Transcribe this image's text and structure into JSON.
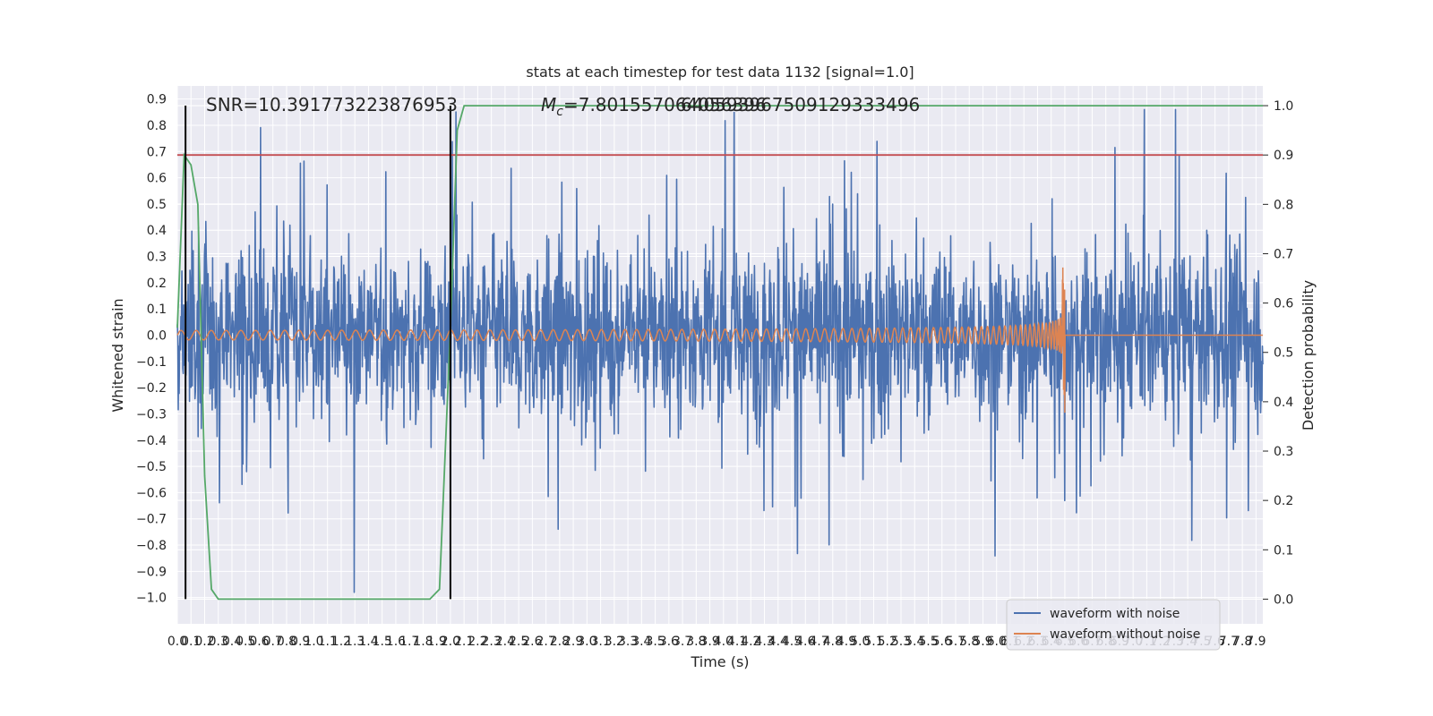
{
  "chart_data": {
    "type": "line",
    "title": "stats at each timestep for test data 1132 [signal=1.0]",
    "xlabel": "Time (s)",
    "ylabel": "Whitened strain",
    "y2label": "Detection probability",
    "xlim": [
      0.0,
      7.95
    ],
    "ylim": [
      -1.1,
      0.95
    ],
    "y2lim": [
      -0.05,
      1.04
    ],
    "x_ticks": [
      "0.0",
      "0.1",
      "0.2",
      "0.3",
      "0.4",
      "0.5",
      "0.6",
      "0.7",
      "0.8",
      "0.9",
      "1.0",
      "1.1",
      "1.2",
      "1.3",
      "1.4",
      "1.5",
      "1.6",
      "1.7",
      "1.8",
      "1.9",
      "2.0",
      "2.1",
      "2.2",
      "2.3",
      "2.4",
      "2.5",
      "2.6",
      "2.7",
      "2.8",
      "2.9",
      "3.0",
      "3.1",
      "3.2",
      "3.3",
      "3.4",
      "3.5",
      "3.6",
      "3.7",
      "3.8",
      "3.9",
      "4.0",
      "4.1",
      "4.2",
      "4.3",
      "4.4",
      "4.5",
      "4.6",
      "4.7",
      "4.8",
      "4.9",
      "5.0",
      "5.1",
      "5.2",
      "5.3",
      "5.4",
      "5.5",
      "5.6",
      "5.7",
      "5.8",
      "5.9",
      "6.0",
      "6.1",
      "6.2",
      "6.3",
      "6.4",
      "6.5",
      "6.6",
      "6.7",
      "6.8",
      "6.9",
      "7.0",
      "7.1",
      "7.2",
      "7.3",
      "7.4",
      "7.5",
      "7.6",
      "7.7",
      "7.8",
      "7.9"
    ],
    "y_ticks": [
      "0.9",
      "0.8",
      "0.7",
      "0.6",
      "0.5",
      "0.4",
      "0.3",
      "0.2",
      "0.1",
      "0.0",
      "−0.1",
      "−0.2",
      "−0.3",
      "−0.4",
      "−0.5",
      "−0.6",
      "−0.7",
      "−0.8",
      "−0.9",
      "−1.0"
    ],
    "y2_ticks": [
      "1.0",
      "0.9",
      "0.8",
      "0.7",
      "0.6",
      "0.5",
      "0.4",
      "0.3",
      "0.2",
      "0.1",
      "0.0"
    ],
    "annotations": {
      "snr": "SNR=10.391773223876953",
      "mc_symbol": "M",
      "mc_sub": "c",
      "mc_text_a": "=7.801557064056396",
      "mc_text_b": "6405939675091293334​96"
    },
    "series": [
      {
        "name": "waveform with noise",
        "color": "#4c72b0",
        "axis": "left",
        "kind": "noise",
        "x_range": [
          0.0,
          7.95
        ],
        "approx_amplitude": 0.45
      },
      {
        "name": "waveform without noise",
        "color": "#dd8452",
        "axis": "left",
        "kind": "chirp",
        "x_range": [
          0.0,
          7.95
        ],
        "merger_time": 6.5,
        "peak_strain": 0.34,
        "start_amplitude": 0.018
      },
      {
        "color": "#55a868",
        "axis": "right",
        "x": [
          0.0,
          0.05,
          0.1,
          0.15,
          0.2,
          0.25,
          0.3,
          1.85,
          1.92,
          2.0,
          2.05,
          2.1,
          7.95
        ],
        "y": [
          0.55,
          0.9,
          0.88,
          0.8,
          0.25,
          0.02,
          0.0,
          0.0,
          0.02,
          0.55,
          0.95,
          1.0,
          1.0
        ]
      }
    ],
    "threshold": {
      "axis": "right",
      "y": 0.9,
      "color": "#c44e52"
    },
    "vlines": [
      0.06,
      2.0
    ],
    "vline_color": "#000000",
    "legend_position": "lower-right",
    "grid": true,
    "axes_facecolor": "#eaeaf2",
    "grid_color": "#ffffff"
  }
}
